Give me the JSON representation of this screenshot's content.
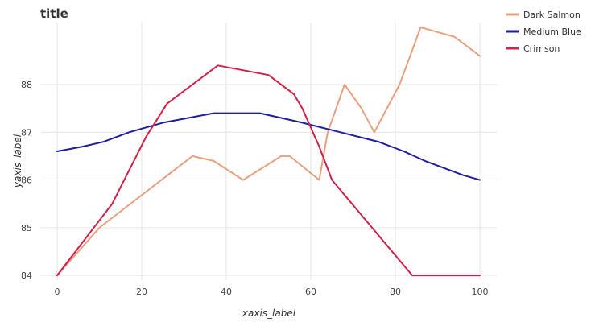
{
  "chart_data": {
    "type": "line",
    "title": "title",
    "xlabel": "xaxis_label",
    "ylabel": "yaxis_label",
    "xlim": [
      -4,
      104
    ],
    "ylim": [
      83.9,
      89.3
    ],
    "xticks": [
      0,
      20,
      40,
      60,
      80,
      100
    ],
    "yticks": [
      84,
      85,
      86,
      87,
      88
    ],
    "grid": true,
    "legend_position": "top-right",
    "series": [
      {
        "name": "Dark Salmon",
        "color": "#E9A07F",
        "x": [
          0,
          10,
          32,
          37,
          44,
          53,
          55,
          62,
          64,
          68,
          72,
          75,
          81,
          86,
          94,
          100
        ],
        "y": [
          84.0,
          85.0,
          86.5,
          86.4,
          86.0,
          86.5,
          86.5,
          86.0,
          87.0,
          88.0,
          87.5,
          87.0,
          88.0,
          89.2,
          89.0,
          88.6
        ]
      },
      {
        "name": "Medium Blue",
        "color": "#1F1F9F",
        "x": [
          0,
          6,
          11,
          17,
          25,
          31,
          37,
          48,
          53,
          58,
          67,
          76,
          82,
          87,
          96,
          100
        ],
        "y": [
          86.6,
          86.7,
          86.8,
          87.0,
          87.2,
          87.3,
          87.4,
          87.4,
          87.3,
          87.2,
          87.0,
          86.8,
          86.6,
          86.4,
          86.1,
          86.0
        ]
      },
      {
        "name": "Crimson",
        "color": "#D22048",
        "x": [
          0,
          13,
          21,
          26,
          35,
          38,
          50,
          56,
          58,
          62,
          65,
          84,
          90,
          100
        ],
        "y": [
          84.0,
          85.5,
          86.9,
          87.6,
          88.2,
          88.4,
          88.2,
          87.8,
          87.5,
          86.7,
          86.0,
          84.0,
          84.0,
          84.0
        ]
      }
    ]
  }
}
